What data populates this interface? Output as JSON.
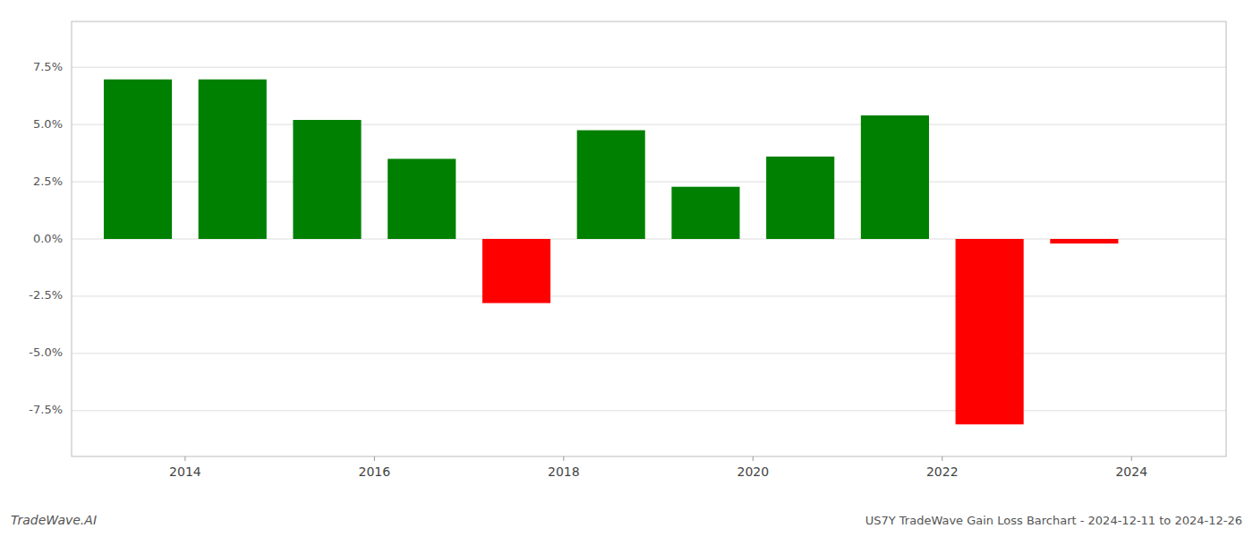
{
  "chart_data": {
    "type": "bar",
    "x": [
      2013.5,
      2014.5,
      2015.5,
      2016.5,
      2017.5,
      2018.5,
      2019.5,
      2020.5,
      2021.5,
      2022.5,
      2023.5
    ],
    "values": [
      0.0697,
      0.0697,
      0.052,
      0.035,
      -0.028,
      0.0475,
      0.0228,
      0.036,
      0.054,
      -0.081,
      -0.002
    ],
    "colors": [
      "#008000",
      "#008000",
      "#008000",
      "#008000",
      "#ff0000",
      "#008000",
      "#008000",
      "#008000",
      "#008000",
      "#ff0000",
      "#ff0000"
    ],
    "xlim": [
      2012.8,
      2025.0
    ],
    "xticks": [
      2014,
      2016,
      2018,
      2020,
      2022,
      2024
    ],
    "ylim": [
      -0.095,
      0.095
    ],
    "yticks": [
      {
        "value": -0.075,
        "label": "-7.5%"
      },
      {
        "value": -0.05,
        "label": "-5.0%"
      },
      {
        "value": -0.025,
        "label": "-2.5%"
      },
      {
        "value": 0.0,
        "label": "0.0%"
      },
      {
        "value": 0.025,
        "label": "2.5%"
      },
      {
        "value": 0.05,
        "label": "5.0%"
      },
      {
        "value": 0.075,
        "label": "7.5%"
      }
    ],
    "grid": true,
    "annotations": [
      "TradeWave.AI",
      "US7Y TradeWave Gain Loss Barchart - 2024-12-11 to 2024-12-26"
    ]
  }
}
